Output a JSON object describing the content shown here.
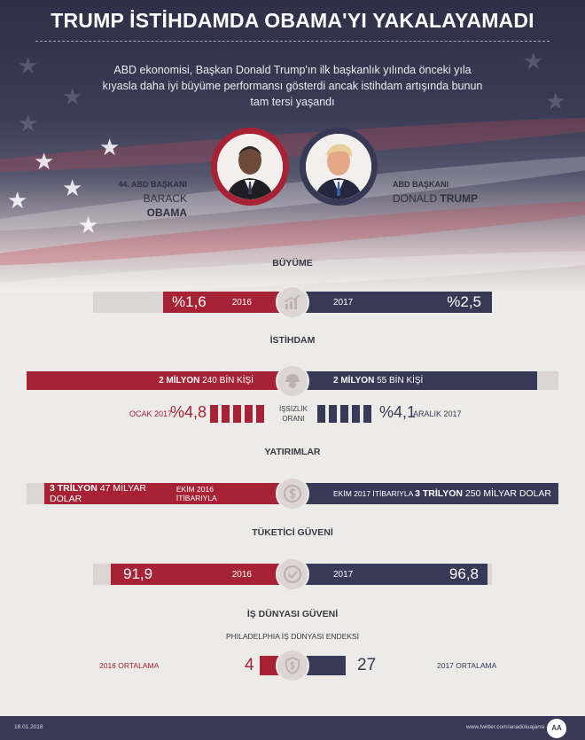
{
  "header": {
    "title": "TRUMP İSTİHDAMDA OBAMA'YI YAKALAYAMADI",
    "subtitle": "ABD ekonomisi, Başkan Donald Trump'ın ilk başkanlık yılında önceki yıla kıyasla daha iyi büyüme performansı gösterdi ancak istihdam artışında bunun tam tersi yaşandı"
  },
  "presidents": {
    "obama": {
      "role": "44. ABD BAŞKANI",
      "first": "BARACK",
      "last": "OBAMA"
    },
    "trump": {
      "role": "ABD BAŞKANI",
      "first": "DONALD",
      "last": "TRUMP"
    }
  },
  "growth": {
    "title": "BÜYÜME",
    "left_value": "%1,6",
    "left_year": "2016",
    "right_year": "2017",
    "right_value": "%2,5"
  },
  "employment": {
    "title": "İSTİHDAM",
    "left_bold": "2 MİLYON",
    "left_rest": " 240 BİN KİŞİ",
    "right_bold": "2 MİLYON",
    "right_rest": " 55 BİN KİŞİ",
    "unemp_label_1": "İŞSİZLİK",
    "unemp_label_2": "ORANI",
    "left_date": "OCAK 2017",
    "left_rate": "%4,8",
    "right_rate": "%4,1",
    "right_date": "ARALIK 2017"
  },
  "investment": {
    "title": "YATIRIMLAR",
    "left_bold": "3 TRİLYON",
    "left_rest": " 47 MİLYAR DOLAR",
    "left_note": "EKİM 2016 İTİBARIYLA",
    "right_note": "EKİM 2017 İTİBARIYLA",
    "right_bold": "3 TRİLYON",
    "right_rest": " 250 MİLYAR DOLAR"
  },
  "consumer": {
    "title": "TÜKETİCİ GÜVENİ",
    "left_value": "91,9",
    "left_year": "2016",
    "right_year": "2017",
    "right_value": "96,8"
  },
  "business": {
    "title": "İŞ DÜNYASI GÜVENİ",
    "subtitle": "PHILADELPHIA İŞ DÜNYASI ENDEKSİ",
    "left_label": "2016 ORTALAMA",
    "left_value": "4",
    "right_value": "27",
    "right_label": "2017 ORTALAMA"
  },
  "footer": {
    "date": "18.01.2018",
    "source": "www.twitter.com/anadoluajansi",
    "logo": "AA"
  },
  "icons": [
    "growth-chart-icon",
    "worker-helmet-icon",
    "dollar-icon",
    "checkmark-icon",
    "shield-dollar-icon"
  ],
  "colors": {
    "red": "#a72234",
    "navy": "#363a56",
    "light": "#dcd5d3"
  }
}
